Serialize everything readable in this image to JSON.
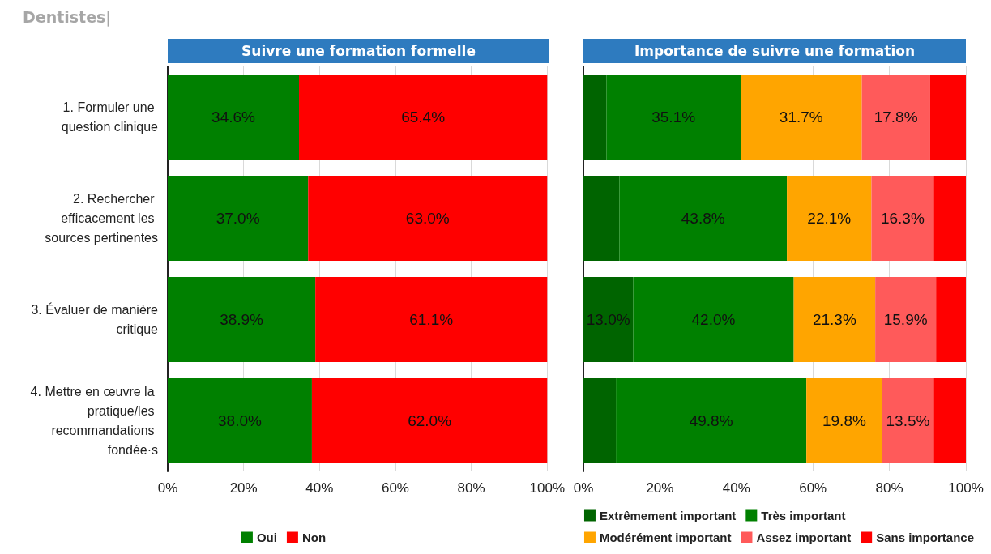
{
  "chart_data": [
    {
      "type": "bar",
      "title": "Suivre une formation formelle",
      "annotations": [
        "Dentistes|"
      ],
      "orientation": "horizontal",
      "stacked": true,
      "categories": [
        "1. Formuler une question clinique",
        "2. Rechercher efficacement les sources pertinentes",
        "3. Évaluer de manière critique",
        "4. Mettre en œuvre la pratique/les recommandations fondée·s"
      ],
      "series": [
        {
          "name": "Oui",
          "color": "#008000",
          "values": [
            34.6,
            37.0,
            38.9,
            38.0
          ],
          "value_labels": [
            "34.6%",
            "37.0%",
            "38.9%",
            "38.0%"
          ]
        },
        {
          "name": "Non",
          "color": "#ff0000",
          "values": [
            65.4,
            63.0,
            61.1,
            62.0
          ],
          "value_labels": [
            "65.4%",
            "63.0%",
            "61.1%",
            "62.0%"
          ]
        }
      ],
      "xlim": [
        0,
        100
      ],
      "xticks": [
        {
          "value": 0,
          "label": "0%"
        },
        {
          "value": 20,
          "label": "20%"
        },
        {
          "value": 40,
          "label": "40%"
        },
        {
          "value": 60,
          "label": "60%"
        },
        {
          "value": 80,
          "label": "80%"
        },
        {
          "value": 100,
          "label": "100%"
        }
      ],
      "grid": "x",
      "legend": "bottom"
    },
    {
      "type": "bar",
      "title": "Importance de suivre une formation",
      "orientation": "horizontal",
      "stacked": true,
      "tick_labels": "x",
      "categories": [
        "1. Formuler une question clinique",
        "2. Rechercher efficacement les sources pertinentes",
        "3. Évaluer de manière critique",
        "4. Mettre en œuvre la pratique/les recommandations fondée·s"
      ],
      "series": [
        {
          "name": "Extrêmement important",
          "color": "#006400",
          "values": [
            6.0,
            9.4,
            13.0,
            8.5
          ],
          "value_labels": [
            null,
            null,
            "13.0%",
            null
          ]
        },
        {
          "name": "Très important",
          "color": "#008000",
          "values": [
            35.1,
            43.8,
            42.0,
            49.8
          ],
          "value_labels": [
            "35.1%",
            "43.8%",
            "42.0%",
            "49.8%"
          ]
        },
        {
          "name": "Modérément important",
          "color": "#ffa500",
          "values": [
            31.7,
            22.1,
            21.3,
            19.8
          ],
          "value_labels": [
            "31.7%",
            "22.1%",
            "21.3%",
            "19.8%"
          ]
        },
        {
          "name": "Assez important",
          "color": "#ff5a5a",
          "values": [
            17.8,
            16.3,
            15.9,
            13.5
          ],
          "value_labels": [
            "17.8%",
            "16.3%",
            "15.9%",
            "13.5%"
          ]
        },
        {
          "name": "Sans importance",
          "color": "#ff0000",
          "values": [
            9.4,
            8.4,
            7.8,
            8.4
          ],
          "value_labels": [
            null,
            null,
            null,
            null
          ]
        }
      ],
      "xlim": [
        0,
        100
      ],
      "xticks": [
        {
          "value": 0,
          "label": "0%"
        },
        {
          "value": 20,
          "label": "20%"
        },
        {
          "value": 40,
          "label": "40%"
        },
        {
          "value": 60,
          "label": "60%"
        },
        {
          "value": 80,
          "label": "80%"
        },
        {
          "value": 100,
          "label": "100%"
        }
      ],
      "grid": "x",
      "legend": "bottom"
    }
  ]
}
